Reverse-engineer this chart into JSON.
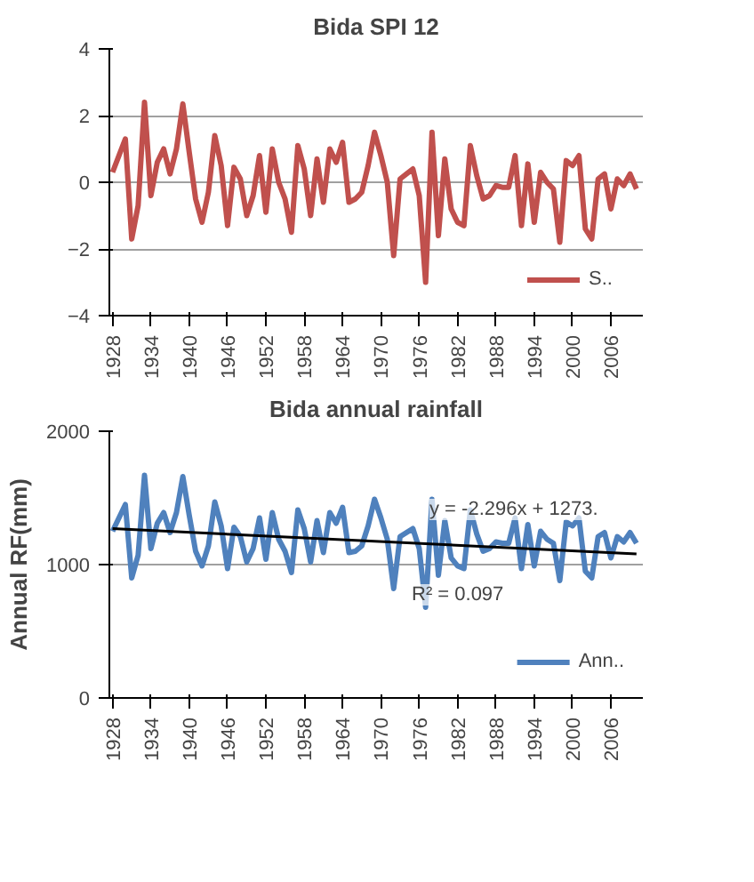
{
  "chart_data": [
    {
      "type": "line",
      "title": "Bida SPI 12",
      "x": [
        1928,
        1929,
        1930,
        1931,
        1932,
        1933,
        1934,
        1935,
        1936,
        1937,
        1938,
        1939,
        1940,
        1941,
        1942,
        1943,
        1944,
        1945,
        1946,
        1947,
        1948,
        1949,
        1950,
        1951,
        1952,
        1953,
        1954,
        1955,
        1956,
        1957,
        1958,
        1959,
        1960,
        1961,
        1962,
        1963,
        1964,
        1965,
        1966,
        1967,
        1968,
        1969,
        1970,
        1971,
        1972,
        1973,
        1974,
        1975,
        1976,
        1977,
        1978,
        1979,
        1980,
        1981,
        1982,
        1983,
        1984,
        1985,
        1986,
        1987,
        1988,
        1989,
        1990,
        1991,
        1992,
        1993,
        1994,
        1995,
        1996,
        1997,
        1998,
        1999,
        2000,
        2001,
        2002,
        2003,
        2004,
        2005,
        2006,
        2007,
        2008,
        2009,
        2010
      ],
      "series": [
        {
          "name": "S..",
          "color": "#c0504d",
          "values": [
            0.3,
            0.8,
            1.3,
            -1.7,
            -0.7,
            2.4,
            -0.4,
            0.6,
            1.0,
            0.25,
            1.0,
            2.35,
            0.9,
            -0.5,
            -1.2,
            -0.3,
            1.4,
            0.5,
            -1.3,
            0.45,
            0.1,
            -1.0,
            -0.4,
            0.8,
            -0.9,
            1.0,
            0.0,
            -0.5,
            -1.5,
            1.1,
            0.4,
            -1.0,
            0.7,
            -0.6,
            1.0,
            0.6,
            1.2,
            -0.6,
            -0.5,
            -0.3,
            0.5,
            1.5,
            0.8,
            0.0,
            -2.2,
            0.1,
            0.25,
            0.4,
            -0.4,
            -3.0,
            1.5,
            -1.6,
            0.7,
            -0.8,
            -1.2,
            -1.3,
            1.1,
            0.2,
            -0.5,
            -0.4,
            -0.1,
            -0.15,
            -0.15,
            0.8,
            -1.3,
            0.55,
            -1.2,
            0.3,
            0.0,
            -0.2,
            -1.8,
            0.65,
            0.5,
            0.8,
            -1.4,
            -1.7,
            0.1,
            0.25,
            -0.8,
            0.1,
            -0.1,
            0.25,
            -0.2
          ]
        }
      ],
      "xlim": [
        1927.5,
        2011
      ],
      "xticks": [
        1928,
        1934,
        1940,
        1946,
        1952,
        1958,
        1964,
        1970,
        1976,
        1982,
        1988,
        1994,
        2000,
        2006
      ],
      "ylim": [
        -4,
        4
      ],
      "yticks": [
        -4,
        -2,
        0,
        2,
        4
      ],
      "grid": "y",
      "legend": "bottom right",
      "line_style": "solid",
      "marker": "none"
    },
    {
      "type": "line",
      "title": "Bida annual rainfall",
      "ylabel": "Annual RF(mm)",
      "x": [
        1928,
        1929,
        1930,
        1931,
        1932,
        1933,
        1934,
        1935,
        1936,
        1937,
        1938,
        1939,
        1940,
        1941,
        1942,
        1943,
        1944,
        1945,
        1946,
        1947,
        1948,
        1949,
        1950,
        1951,
        1952,
        1953,
        1954,
        1955,
        1956,
        1957,
        1958,
        1959,
        1960,
        1961,
        1962,
        1963,
        1964,
        1965,
        1966,
        1967,
        1968,
        1969,
        1970,
        1971,
        1972,
        1973,
        1974,
        1975,
        1976,
        1977,
        1978,
        1979,
        1980,
        1981,
        1982,
        1983,
        1984,
        1985,
        1986,
        1987,
        1988,
        1989,
        1990,
        1991,
        1992,
        1993,
        1994,
        1995,
        1996,
        1997,
        1998,
        1999,
        2000,
        2001,
        2002,
        2003,
        2004,
        2005,
        2006,
        2007,
        2008,
        2009,
        2010
      ],
      "series": [
        {
          "name": "Ann..",
          "color": "#4f81bd",
          "values": [
            1250,
            1350,
            1450,
            900,
            1070,
            1670,
            1120,
            1310,
            1390,
            1240,
            1390,
            1660,
            1370,
            1100,
            990,
            1140,
            1470,
            1290,
            970,
            1280,
            1210,
            1020,
            1120,
            1350,
            1040,
            1390,
            1190,
            1100,
            940,
            1410,
            1270,
            1020,
            1330,
            1090,
            1390,
            1310,
            1430,
            1090,
            1100,
            1140,
            1290,
            1490,
            1350,
            1190,
            820,
            1210,
            1240,
            1270,
            1120,
            680,
            1490,
            920,
            1330,
            1050,
            990,
            970,
            1410,
            1230,
            1100,
            1120,
            1170,
            1160,
            1160,
            1350,
            970,
            1300,
            990,
            1250,
            1190,
            1160,
            880,
            1320,
            1290,
            1350,
            950,
            900,
            1210,
            1240,
            1050,
            1210,
            1170,
            1240,
            1160
          ]
        },
        {
          "type": "line",
          "color": "#000000",
          "x": [
            1928,
            2010
          ],
          "values": [
            1270,
            1080
          ]
        }
      ],
      "annotations": [
        "y = -2.296x + 1273.",
        "R² = 0.097"
      ],
      "xlim": [
        1927.5,
        2011
      ],
      "xticks": [
        1928,
        1934,
        1940,
        1946,
        1952,
        1958,
        1964,
        1970,
        1976,
        1982,
        1988,
        1994,
        2000,
        2006
      ],
      "ylim": [
        0,
        2000
      ],
      "yticks": [
        0,
        1000,
        2000
      ],
      "grid": "y",
      "legend": "bottom right",
      "line_style": "solid",
      "marker": "none"
    }
  ]
}
